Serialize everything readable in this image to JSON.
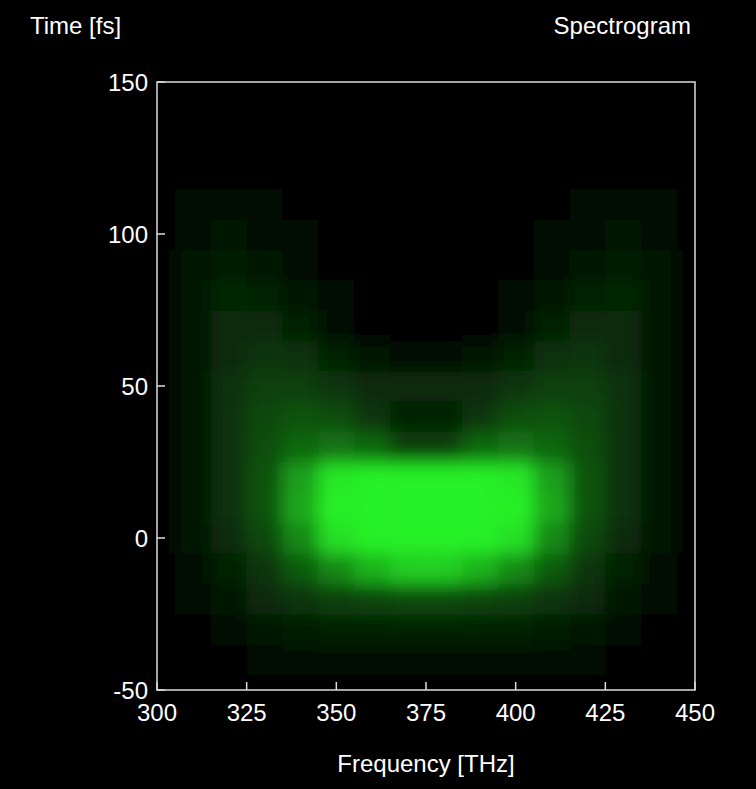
{
  "chart_data": {
    "type": "heatmap",
    "title": "Spectrogram",
    "x_label": "Frequency [THz]",
    "y_label": "Time [fs]",
    "xlim": [
      300,
      450
    ],
    "ylim": [
      -50,
      150
    ],
    "xticks": [
      300,
      325,
      350,
      375,
      400,
      425,
      450
    ],
    "yticks": [
      -50,
      0,
      50,
      100,
      150
    ],
    "grid": false,
    "color": "#28f028",
    "zlim": [
      0,
      1
    ],
    "x": [
      300,
      310,
      320,
      330,
      340,
      350,
      360,
      370,
      380,
      390,
      400,
      410,
      420,
      430,
      440,
      450
    ],
    "y": [
      -50,
      -40,
      -30,
      -20,
      -10,
      0,
      10,
      20,
      30,
      40,
      50,
      60,
      70,
      80,
      90,
      100,
      110,
      120,
      130,
      140,
      150
    ],
    "cells": [
      [
        0,
        0,
        0,
        0,
        0,
        0,
        0,
        0,
        0,
        0,
        0,
        0,
        0,
        0,
        0,
        0
      ],
      [
        0,
        0,
        0,
        0.01,
        0.01,
        0.01,
        0.01,
        0.01,
        0.01,
        0.01,
        0.01,
        0.01,
        0.01,
        0,
        0,
        0
      ],
      [
        0,
        0,
        0.02,
        0.04,
        0.05,
        0.06,
        0.06,
        0.06,
        0.06,
        0.06,
        0.06,
        0.05,
        0.04,
        0.02,
        0,
        0
      ],
      [
        0,
        0.01,
        0.04,
        0.08,
        0.12,
        0.15,
        0.17,
        0.18,
        0.18,
        0.17,
        0.15,
        0.12,
        0.08,
        0.04,
        0.01,
        0
      ],
      [
        0,
        0.02,
        0.06,
        0.12,
        0.25,
        0.45,
        0.65,
        0.8,
        0.8,
        0.65,
        0.45,
        0.25,
        0.12,
        0.06,
        0.02,
        0
      ],
      [
        0,
        0.03,
        0.08,
        0.18,
        0.45,
        0.9,
        1,
        1,
        1,
        1,
        0.9,
        0.45,
        0.18,
        0.08,
        0.03,
        0
      ],
      [
        0,
        0.04,
        0.1,
        0.22,
        0.6,
        1,
        1,
        1,
        1,
        1,
        1,
        0.6,
        0.22,
        0.1,
        0.04,
        0
      ],
      [
        0,
        0.04,
        0.11,
        0.22,
        0.55,
        0.95,
        1,
        1,
        1,
        1,
        0.95,
        0.55,
        0.22,
        0.11,
        0.04,
        0
      ],
      [
        0,
        0.04,
        0.11,
        0.2,
        0.3,
        0.35,
        0.3,
        0.15,
        0.15,
        0.3,
        0.35,
        0.3,
        0.2,
        0.11,
        0.04,
        0
      ],
      [
        0,
        0.04,
        0.11,
        0.18,
        0.22,
        0.2,
        0.12,
        0.06,
        0.06,
        0.12,
        0.2,
        0.22,
        0.18,
        0.11,
        0.04,
        0
      ],
      [
        0,
        0.04,
        0.1,
        0.15,
        0.15,
        0.12,
        0.08,
        0.08,
        0.08,
        0.08,
        0.12,
        0.15,
        0.15,
        0.1,
        0.04,
        0
      ],
      [
        0,
        0.04,
        0.09,
        0.12,
        0.1,
        0.06,
        0.03,
        0.01,
        0.01,
        0.03,
        0.06,
        0.1,
        0.12,
        0.09,
        0.04,
        0
      ],
      [
        0,
        0.04,
        0.08,
        0.09,
        0.06,
        0.02,
        0,
        0,
        0,
        0,
        0.02,
        0.06,
        0.09,
        0.08,
        0.04,
        0
      ],
      [
        0,
        0.04,
        0.07,
        0.06,
        0.03,
        0.01,
        0,
        0,
        0,
        0,
        0.01,
        0.03,
        0.06,
        0.07,
        0.04,
        0
      ],
      [
        0,
        0.03,
        0.05,
        0.04,
        0.02,
        0,
        0,
        0,
        0,
        0,
        0,
        0.02,
        0.04,
        0.05,
        0.03,
        0
      ],
      [
        0,
        0.02,
        0.03,
        0.02,
        0.01,
        0,
        0,
        0,
        0,
        0,
        0,
        0.01,
        0.02,
        0.03,
        0.02,
        0
      ],
      [
        0,
        0.01,
        0.01,
        0.01,
        0,
        0,
        0,
        0,
        0,
        0,
        0,
        0,
        0.01,
        0.01,
        0.01,
        0
      ],
      [
        0,
        0,
        0,
        0,
        0,
        0,
        0,
        0,
        0,
        0,
        0,
        0,
        0,
        0,
        0,
        0
      ],
      [
        0,
        0,
        0,
        0,
        0,
        0,
        0,
        0,
        0,
        0,
        0,
        0,
        0,
        0,
        0,
        0
      ],
      [
        0,
        0,
        0,
        0,
        0,
        0,
        0,
        0,
        0,
        0,
        0,
        0,
        0,
        0,
        0,
        0
      ],
      [
        0,
        0,
        0,
        0,
        0,
        0,
        0,
        0,
        0,
        0,
        0,
        0,
        0,
        0,
        0,
        0
      ]
    ]
  }
}
